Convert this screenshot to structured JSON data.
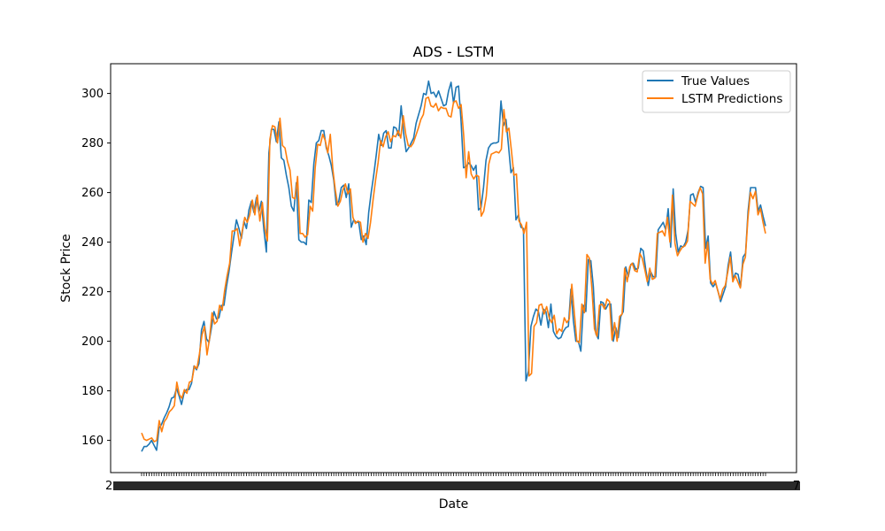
{
  "chart_data": {
    "type": "line",
    "title": "ADS - LSTM",
    "xlabel": "Date",
    "ylabel": "Stock Price",
    "ylim": [
      147,
      312
    ],
    "yticks": [
      160,
      180,
      200,
      220,
      240,
      260,
      280,
      300
    ],
    "grid": false,
    "legend_position": "top-right",
    "series": [
      {
        "name": "True Values",
        "color": "#1f77b4",
        "values": [
          155.5,
          157.5,
          157.5,
          158.5,
          160.0,
          158.0,
          156.0,
          165.0,
          166.5,
          169.0,
          171.0,
          173.5,
          177.0,
          177.5,
          181.0,
          178.0,
          174.5,
          179.0,
          180.5,
          180.5,
          183.0,
          190.0,
          188.5,
          191.0,
          204.5,
          208.0,
          201.0,
          199.5,
          205.5,
          212.0,
          209.0,
          209.5,
          214.5,
          214.5,
          222.0,
          228.0,
          235.5,
          242.5,
          249.0,
          245.5,
          241.5,
          248.5,
          245.5,
          253.0,
          256.5,
          252.0,
          258.0,
          252.0,
          256.5,
          245.0,
          236.0,
          276.0,
          285.5,
          285.5,
          280.5,
          288.5,
          274.0,
          273.0,
          267.0,
          262.0,
          254.5,
          252.5,
          264.0,
          241.0,
          240.0,
          240.0,
          239.0,
          257.0,
          256.0,
          271.5,
          280.0,
          281.0,
          285.0,
          285.0,
          278.0,
          275.0,
          271.0,
          265.0,
          255.0,
          256.5,
          262.0,
          263.0,
          258.0,
          263.5,
          246.0,
          249.0,
          248.0,
          248.0,
          241.0,
          242.5,
          239.0,
          252.0,
          260.0,
          267.0,
          275.0,
          283.5,
          279.0,
          284.0,
          285.0,
          278.0,
          278.0,
          286.5,
          286.0,
          283.0,
          295.0,
          284.0,
          276.5,
          278.0,
          280.0,
          282.0,
          288.0,
          291.5,
          295.0,
          300.0,
          299.5,
          305.0,
          300.0,
          300.5,
          298.5,
          301.0,
          298.0,
          295.0,
          295.5,
          301.0,
          304.5,
          296.0,
          302.5,
          303.0,
          289.0,
          270.0,
          270.5,
          272.0,
          271.0,
          269.0,
          271.0,
          253.0,
          254.0,
          262.0,
          273.0,
          278.0,
          279.5,
          280.0,
          280.0,
          280.5,
          297.0,
          287.0,
          289.5,
          279.0,
          268.0,
          270.0,
          249.0,
          251.0,
          246.0,
          245.5,
          184.0,
          188.0,
          206.0,
          210.0,
          213.0,
          212.0,
          206.5,
          213.0,
          212.0,
          205.5,
          215.0,
          204.0,
          202.0,
          201.0,
          201.5,
          204.0,
          205.5,
          206.0,
          221.0,
          208.5,
          200.0,
          200.0,
          196.0,
          214.5,
          212.0,
          233.0,
          232.5,
          222.0,
          203.0,
          201.0,
          216.0,
          215.5,
          213.0,
          215.0,
          215.0,
          200.0,
          205.5,
          201.5,
          210.0,
          212.0,
          230.0,
          226.0,
          231.0,
          231.5,
          229.0,
          229.5,
          237.5,
          236.5,
          229.0,
          222.5,
          228.0,
          226.0,
          226.0,
          245.0,
          246.5,
          248.0,
          245.0,
          253.5,
          238.0,
          261.5,
          243.5,
          236.0,
          238.5,
          238.0,
          240.0,
          245.0,
          259.0,
          259.5,
          256.0,
          260.0,
          262.5,
          262.0,
          237.5,
          242.5,
          223.5,
          222.0,
          223.5,
          220.0,
          216.0,
          219.0,
          222.0,
          230.5,
          236.0,
          225.0,
          227.5,
          227.0,
          222.0,
          234.0,
          235.5,
          252.5,
          262.0,
          262.0,
          262.0,
          252.5,
          255.0,
          250.5,
          246.5
        ]
      },
      {
        "name": "LSTM Predictions",
        "color": "#ff7f0e",
        "values": [
          163.0,
          160.5,
          160.0,
          160.5,
          161.0,
          159.5,
          160.0,
          168.0,
          163.5,
          167.5,
          169.0,
          171.5,
          172.5,
          174.0,
          183.5,
          178.5,
          177.0,
          180.5,
          179.0,
          183.5,
          184.0,
          190.0,
          189.0,
          195.0,
          202.5,
          206.0,
          194.5,
          201.0,
          211.5,
          207.0,
          208.0,
          214.5,
          212.5,
          220.5,
          226.5,
          231.5,
          244.5,
          244.5,
          245.5,
          238.5,
          244.5,
          250.0,
          248.0,
          251.0,
          257.0,
          251.0,
          259.0,
          248.5,
          256.0,
          245.5,
          240.5,
          281.5,
          287.0,
          286.5,
          280.0,
          290.0,
          279.0,
          278.0,
          272.5,
          269.0,
          258.0,
          257.5,
          266.5,
          243.5,
          243.5,
          242.0,
          243.0,
          254.5,
          252.5,
          270.0,
          279.5,
          279.0,
          283.5,
          281.0,
          276.0,
          283.5,
          269.5,
          261.0,
          254.5,
          256.5,
          261.0,
          263.5,
          259.5,
          261.5,
          250.0,
          247.5,
          248.5,
          248.0,
          240.0,
          243.5,
          241.5,
          248.0,
          257.0,
          265.0,
          272.0,
          281.0,
          278.5,
          282.5,
          284.5,
          280.5,
          283.0,
          282.5,
          285.0,
          282.0,
          291.0,
          283.5,
          279.0,
          278.5,
          280.0,
          283.0,
          286.0,
          289.5,
          291.5,
          298.0,
          298.5,
          295.0,
          294.5,
          296.0,
          293.0,
          294.5,
          294.0,
          294.0,
          291.0,
          290.5,
          296.5,
          297.0,
          294.0,
          295.5,
          283.5,
          266.0,
          276.5,
          267.5,
          265.5,
          267.0,
          266.5,
          250.5,
          252.5,
          258.5,
          271.5,
          275.5,
          276.0,
          276.5,
          276.0,
          277.5,
          293.5,
          284.5,
          286.0,
          277.0,
          267.0,
          267.5,
          248.5,
          247.0,
          243.5,
          248.0,
          186.0,
          187.0,
          206.0,
          207.5,
          214.5,
          215.0,
          211.0,
          214.0,
          209.5,
          207.5,
          210.5,
          203.0,
          205.0,
          204.0,
          209.5,
          207.5,
          209.0,
          223.0,
          211.5,
          200.0,
          199.5,
          215.0,
          211.5,
          235.0,
          233.5,
          221.0,
          205.0,
          202.0,
          214.5,
          215.0,
          213.0,
          217.0,
          216.0,
          200.5,
          207.5,
          200.0,
          210.0,
          211.0,
          229.5,
          224.0,
          230.0,
          231.5,
          228.5,
          228.0,
          235.5,
          233.5,
          229.0,
          224.0,
          229.5,
          225.0,
          225.5,
          243.5,
          244.0,
          244.5,
          242.5,
          250.0,
          240.0,
          259.0,
          239.5,
          234.5,
          236.5,
          238.0,
          238.5,
          240.5,
          256.5,
          255.5,
          254.5,
          258.5,
          262.0,
          259.5,
          231.5,
          240.0,
          225.0,
          223.0,
          224.5,
          220.5,
          217.0,
          221.0,
          222.5,
          228.0,
          234.0,
          224.0,
          226.5,
          224.0,
          221.5,
          231.0,
          234.0,
          249.5,
          260.0,
          257.5,
          260.5,
          251.0,
          253.5,
          248.0,
          243.5
        ]
      }
    ],
    "xtick_left_label": "2",
    "xtick_right_label": "7"
  }
}
